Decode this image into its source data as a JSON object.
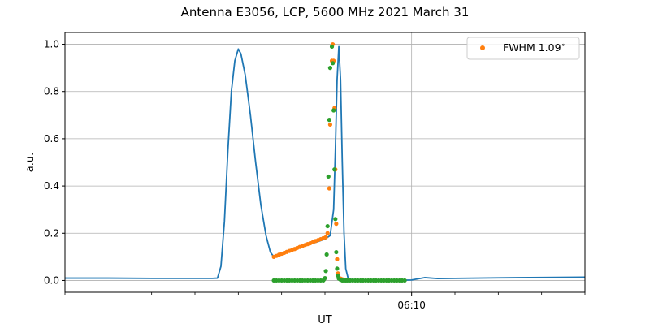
{
  "chart_data": {
    "type": "line",
    "title": "Antenna E3056, LCP, 5600 MHz 2021 March 31",
    "xlabel": "UT",
    "ylabel": "a.u.",
    "xlim": [
      -40,
      20
    ],
    "ylim": [
      -0.05,
      1.05
    ],
    "x_unit": "minutes relative to 06:10 UT",
    "yticks": [
      0.0,
      0.2,
      0.4,
      0.6,
      0.8,
      1.0
    ],
    "ytick_labels": [
      "0.0",
      "0.2",
      "0.4",
      "0.6",
      "0.8",
      "1.0"
    ],
    "xticks_major": [
      0
    ],
    "xtick_major_labels": [
      "06:10"
    ],
    "xticks_minor": [
      -40,
      -30,
      -25,
      -20,
      -15,
      -10,
      -5,
      5,
      10,
      15,
      20
    ],
    "grid": true,
    "legend": {
      "position": "top-right",
      "entries": [
        "FWHM 1.09$^\\circ$"
      ]
    },
    "legend_label_display": "FWHM 1.09",
    "legend_label_sup": "∘",
    "colors": {
      "line": "#1f77b4",
      "orange": "#ff7f0e",
      "green": "#2ca02c",
      "grid": "#b0b0b0"
    },
    "series": [
      {
        "kind": "line",
        "color": "#1f77b4",
        "points": [
          [
            -40,
            0.01
          ],
          [
            -35,
            0.01
          ],
          [
            -30,
            0.009
          ],
          [
            -25,
            0.009
          ],
          [
            -23,
            0.009
          ],
          [
            -22.4,
            0.01
          ],
          [
            -22.0,
            0.06
          ],
          [
            -21.6,
            0.25
          ],
          [
            -21.2,
            0.55
          ],
          [
            -20.8,
            0.8
          ],
          [
            -20.4,
            0.93
          ],
          [
            -20.0,
            0.98
          ],
          [
            -19.7,
            0.96
          ],
          [
            -19.2,
            0.87
          ],
          [
            -18.6,
            0.7
          ],
          [
            -18.0,
            0.5
          ],
          [
            -17.4,
            0.32
          ],
          [
            -16.8,
            0.19
          ],
          [
            -16.3,
            0.12
          ],
          [
            -15.9,
            0.1
          ],
          [
            -14.0,
            0.125
          ],
          [
            -12.0,
            0.15
          ],
          [
            -10.0,
            0.175
          ],
          [
            -9.4,
            0.19
          ],
          [
            -9.0,
            0.3
          ],
          [
            -8.8,
            0.55
          ],
          [
            -8.6,
            0.85
          ],
          [
            -8.4,
            0.99
          ],
          [
            -8.2,
            0.85
          ],
          [
            -8.0,
            0.5
          ],
          [
            -7.8,
            0.2
          ],
          [
            -7.6,
            0.05
          ],
          [
            -7.3,
            0.005
          ],
          [
            -5,
            0.001
          ],
          [
            -1,
            0.001
          ],
          [
            0,
            0.002
          ],
          [
            1.5,
            0.012
          ],
          [
            3,
            0.008
          ],
          [
            10,
            0.011
          ],
          [
            20,
            0.014
          ]
        ]
      },
      {
        "kind": "scatter",
        "color": "#ff7f0e",
        "points": [
          [
            -15.9,
            0.1
          ],
          [
            -15.6,
            0.104
          ],
          [
            -15.3,
            0.109
          ],
          [
            -15.0,
            0.113
          ],
          [
            -14.7,
            0.117
          ],
          [
            -14.4,
            0.121
          ],
          [
            -14.1,
            0.125
          ],
          [
            -13.8,
            0.129
          ],
          [
            -13.5,
            0.133
          ],
          [
            -13.2,
            0.138
          ],
          [
            -12.9,
            0.142
          ],
          [
            -12.6,
            0.146
          ],
          [
            -12.3,
            0.15
          ],
          [
            -12.0,
            0.154
          ],
          [
            -11.7,
            0.158
          ],
          [
            -11.4,
            0.162
          ],
          [
            -11.1,
            0.167
          ],
          [
            -10.8,
            0.171
          ],
          [
            -10.5,
            0.175
          ],
          [
            -10.2,
            0.179
          ],
          [
            -9.9,
            0.183
          ],
          [
            -9.7,
            0.2
          ],
          [
            -9.5,
            0.39
          ],
          [
            -9.4,
            0.66
          ],
          [
            -9.2,
            0.93
          ],
          [
            -9.1,
            1.0
          ],
          [
            -9.0,
            0.93
          ],
          [
            -8.9,
            0.73
          ],
          [
            -8.8,
            0.47
          ],
          [
            -8.7,
            0.24
          ],
          [
            -8.6,
            0.09
          ],
          [
            -8.5,
            0.03
          ],
          [
            -8.4,
            0.012
          ],
          [
            -8.2,
            0.008
          ],
          [
            -8.0,
            0.005
          ],
          [
            -7.8,
            0.003
          ],
          [
            -7.6,
            0.002
          ],
          [
            -7.4,
            0.002
          ]
        ]
      },
      {
        "kind": "scatter",
        "color": "#2ca02c",
        "points": [
          [
            -15.9,
            0.0
          ],
          [
            -15.6,
            0.0
          ],
          [
            -15.3,
            0.0
          ],
          [
            -15.0,
            0.0
          ],
          [
            -14.7,
            0.0
          ],
          [
            -14.4,
            0.0
          ],
          [
            -14.1,
            0.0
          ],
          [
            -13.8,
            0.0
          ],
          [
            -13.5,
            0.0
          ],
          [
            -13.2,
            0.0
          ],
          [
            -12.9,
            0.0
          ],
          [
            -12.6,
            0.0
          ],
          [
            -12.3,
            0.0
          ],
          [
            -12.0,
            0.0
          ],
          [
            -11.7,
            0.0
          ],
          [
            -11.4,
            0.0
          ],
          [
            -11.1,
            0.0
          ],
          [
            -10.8,
            0.0
          ],
          [
            -10.5,
            0.0
          ],
          [
            -10.2,
            0.0
          ],
          [
            -10.1,
            0.005
          ],
          [
            -10.0,
            0.01
          ],
          [
            -9.9,
            0.04
          ],
          [
            -9.8,
            0.11
          ],
          [
            -9.7,
            0.23
          ],
          [
            -9.6,
            0.44
          ],
          [
            -9.5,
            0.68
          ],
          [
            -9.4,
            0.9
          ],
          [
            -9.2,
            0.99
          ],
          [
            -9.1,
            0.92
          ],
          [
            -9.0,
            0.72
          ],
          [
            -8.9,
            0.47
          ],
          [
            -8.8,
            0.26
          ],
          [
            -8.7,
            0.12
          ],
          [
            -8.6,
            0.05
          ],
          [
            -8.5,
            0.02
          ],
          [
            -8.4,
            0.008
          ],
          [
            -8.2,
            0.003
          ],
          [
            -8.0,
            0.0
          ],
          [
            -7.8,
            0.0
          ],
          [
            -7.6,
            0.0
          ],
          [
            -7.4,
            0.0
          ],
          [
            -7.1,
            0.0
          ],
          [
            -6.8,
            0.0
          ],
          [
            -6.5,
            0.0
          ],
          [
            -6.2,
            0.0
          ],
          [
            -5.9,
            0.0
          ],
          [
            -5.6,
            0.0
          ],
          [
            -5.3,
            0.0
          ],
          [
            -5.0,
            0.0
          ],
          [
            -4.7,
            0.0
          ],
          [
            -4.4,
            0.0
          ],
          [
            -4.1,
            0.0
          ],
          [
            -3.8,
            0.0
          ],
          [
            -3.5,
            0.0
          ],
          [
            -3.2,
            0.0
          ],
          [
            -2.9,
            0.0
          ],
          [
            -2.6,
            0.0
          ],
          [
            -2.3,
            0.0
          ],
          [
            -2.0,
            0.0
          ],
          [
            -1.7,
            0.0
          ],
          [
            -1.4,
            0.0
          ],
          [
            -1.1,
            0.0
          ],
          [
            -0.8,
            0.0
          ]
        ]
      }
    ]
  }
}
